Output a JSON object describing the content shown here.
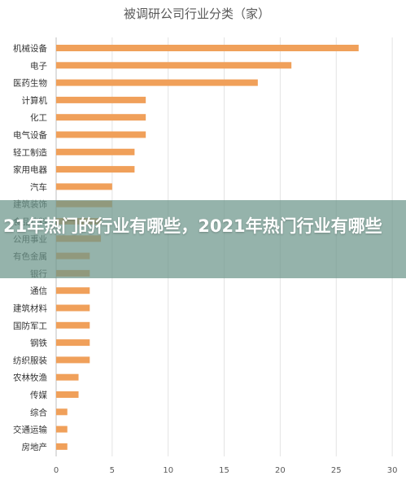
{
  "overlay": {
    "headline": "21年热门的行业有哪些，2021年热门行业有哪些"
  },
  "chart_data": {
    "type": "bar",
    "orientation": "horizontal",
    "title": "被调研公司行业分类（家）",
    "categories": [
      "机械设备",
      "电子",
      "医药生物",
      "计算机",
      "化工",
      "电气设备",
      "轻工制造",
      "家用电器",
      "汽车",
      "建筑装饰",
      "食品饮料",
      "公用事业",
      "有色金属",
      "银行",
      "通信",
      "建筑材料",
      "国防军工",
      "钢铁",
      "纺织服装",
      "农林牧渔",
      "传媒",
      "综合",
      "交通运输",
      "房地产"
    ],
    "values": [
      27,
      21,
      18,
      8,
      8,
      8,
      7,
      7,
      5,
      5,
      4,
      4,
      3,
      3,
      3,
      3,
      3,
      3,
      3,
      2,
      2,
      1,
      1,
      1
    ],
    "xlim": [
      0,
      30
    ],
    "xticks": [
      "0",
      "5",
      "10",
      "15",
      "20",
      "25",
      "30"
    ],
    "grid": true,
    "bar_color": "#F0A05A"
  }
}
